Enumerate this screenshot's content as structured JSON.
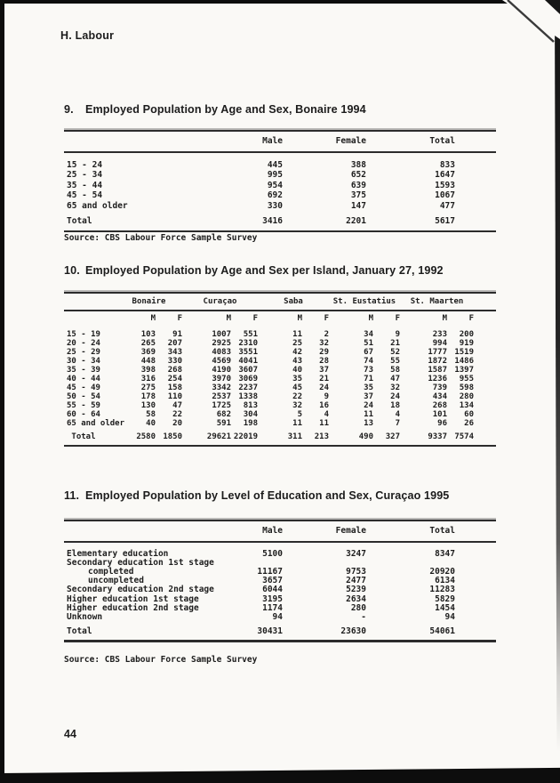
{
  "page": {
    "section_header": "H. Labour",
    "page_number": "44"
  },
  "table9": {
    "number": "9.",
    "title": "Employed Population by Age and Sex, Bonaire 1994",
    "columns": [
      "Male",
      "Female",
      "Total"
    ],
    "rows": [
      {
        "label": "15 - 24",
        "values": [
          "445",
          "388",
          "833"
        ]
      },
      {
        "label": "25 - 34",
        "values": [
          "995",
          "652",
          "1647"
        ]
      },
      {
        "label": "35 - 44",
        "values": [
          "954",
          "639",
          "1593"
        ]
      },
      {
        "label": "45 - 54",
        "values": [
          "692",
          "375",
          "1067"
        ]
      },
      {
        "label": "65 and older",
        "values": [
          "330",
          "147",
          "477"
        ]
      }
    ],
    "total": {
      "label": "Total",
      "values": [
        "3416",
        "2201",
        "5617"
      ]
    },
    "source": "Source: CBS Labour Force Sample Survey"
  },
  "table10": {
    "number": "10.",
    "title": "Employed Population by Age and Sex per Island, January 27, 1992",
    "island_groups": [
      "Bonaire",
      "Curaçao",
      "Saba",
      "St. Eustatius",
      "St. Maarten"
    ],
    "sub_columns": [
      "M",
      "F"
    ],
    "rows": [
      {
        "label": "15 - 19",
        "values": [
          "103",
          "91",
          "1007",
          "551",
          "11",
          "2",
          "34",
          "9",
          "233",
          "200"
        ]
      },
      {
        "label": "20 - 24",
        "values": [
          "265",
          "207",
          "2925",
          "2310",
          "25",
          "32",
          "51",
          "21",
          "994",
          "919"
        ]
      },
      {
        "label": "25 - 29",
        "values": [
          "369",
          "343",
          "4083",
          "3551",
          "42",
          "29",
          "67",
          "52",
          "1777",
          "1519"
        ]
      },
      {
        "label": "30 - 34",
        "values": [
          "448",
          "330",
          "4569",
          "4041",
          "43",
          "28",
          "74",
          "55",
          "1872",
          "1486"
        ]
      },
      {
        "label": "35 - 39",
        "values": [
          "398",
          "268",
          "4190",
          "3607",
          "40",
          "37",
          "73",
          "58",
          "1587",
          "1397"
        ]
      },
      {
        "label": "40 - 44",
        "values": [
          "316",
          "254",
          "3970",
          "3069",
          "35",
          "21",
          "71",
          "47",
          "1236",
          "955"
        ]
      },
      {
        "label": "45 - 49",
        "values": [
          "275",
          "158",
          "3342",
          "2237",
          "45",
          "24",
          "35",
          "32",
          "739",
          "598"
        ]
      },
      {
        "label": "50 - 54",
        "values": [
          "178",
          "110",
          "2537",
          "1338",
          "22",
          "9",
          "37",
          "24",
          "434",
          "280"
        ]
      },
      {
        "label": "55 - 59",
        "values": [
          "130",
          "47",
          "1725",
          "813",
          "32",
          "16",
          "24",
          "18",
          "268",
          "134"
        ]
      },
      {
        "label": "60 - 64",
        "values": [
          "58",
          "22",
          "682",
          "304",
          "5",
          "4",
          "11",
          "4",
          "101",
          "60"
        ]
      },
      {
        "label": "65 and older",
        "values": [
          "40",
          "20",
          "591",
          "198",
          "11",
          "11",
          "13",
          "7",
          "96",
          "26"
        ]
      }
    ],
    "total": {
      "label": "Total",
      "values": [
        "2580",
        "1850",
        "29621",
        "22019",
        "311",
        "213",
        "490",
        "327",
        "9337",
        "7574"
      ]
    }
  },
  "table11": {
    "number": "11.",
    "title": "Employed Population by Level of Education and Sex, Curaçao 1995",
    "columns": [
      "Male",
      "Female",
      "Total"
    ],
    "rows": [
      {
        "label": "Elementary education",
        "indent": 0,
        "values": [
          "5100",
          "3247",
          "8347"
        ]
      },
      {
        "label": "Secondary education 1st stage",
        "indent": 0,
        "values": [
          "",
          "",
          ""
        ]
      },
      {
        "label": "completed",
        "indent": 1,
        "values": [
          "11167",
          "9753",
          "20920"
        ]
      },
      {
        "label": "uncompleted",
        "indent": 1,
        "values": [
          "3657",
          "2477",
          "6134"
        ]
      },
      {
        "label": "Secondary education 2nd stage",
        "indent": 0,
        "values": [
          "6044",
          "5239",
          "11283"
        ]
      },
      {
        "label": "Higher education 1st stage",
        "indent": 0,
        "values": [
          "3195",
          "2634",
          "5829"
        ]
      },
      {
        "label": "Higher education 2nd stage",
        "indent": 0,
        "values": [
          "1174",
          "280",
          "1454"
        ]
      },
      {
        "label": "Unknown",
        "indent": 0,
        "values": [
          "94",
          "-",
          "94"
        ]
      }
    ],
    "total": {
      "label": "Total",
      "values": [
        "30431",
        "23630",
        "54061"
      ]
    },
    "source": "Source: CBS Labour Force Sample Survey"
  }
}
